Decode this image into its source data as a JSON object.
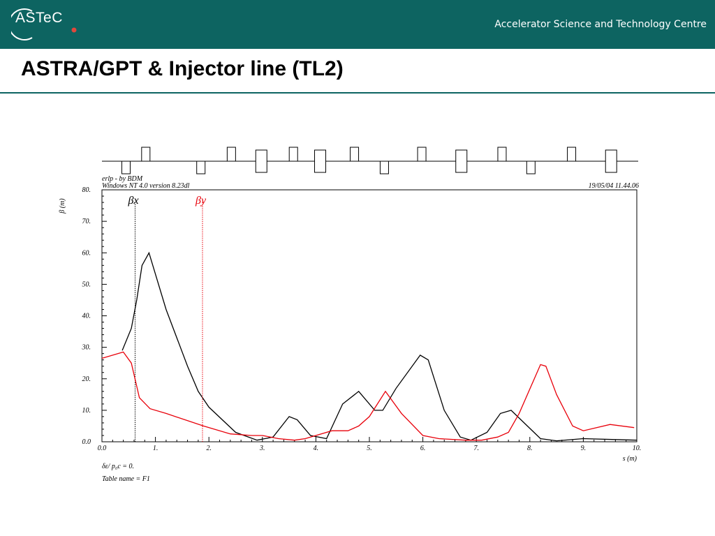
{
  "header": {
    "logo_text": "ASTeC",
    "org_name": "Accelerator Science and Technology Centre",
    "brand_color": "#0d6461",
    "logo_dot_color": "#e0483c"
  },
  "slide": {
    "title": "ASTRA/GPT & Injector line (TL2)"
  },
  "chart_data": {
    "type": "line",
    "header_left_1": "erlp - by BDM",
    "header_left_2": "Windows NT 4.0 version 8.23dl",
    "header_right": "19/05/04  11.44.06",
    "ylabel": "β (m)",
    "xlabel": "s (m)",
    "xlim": [
      0,
      10
    ],
    "ylim": [
      0,
      80
    ],
    "x_ticks": [
      "0.0",
      "1.",
      "2.",
      "3.",
      "4.",
      "5.",
      "6.",
      "7.",
      "8.",
      "9.",
      "10."
    ],
    "y_ticks": [
      "0.0",
      "10.",
      "20.",
      "30.",
      "40.",
      "50.",
      "60.",
      "70.",
      "80."
    ],
    "grid": false,
    "footer_1": "δε/ p₀c  =  0.",
    "footer_2": "Table name = F1",
    "series": [
      {
        "name": "βx",
        "color": "#000000",
        "marker_x": 0.62,
        "x": [
          0.38,
          0.55,
          0.65,
          0.75,
          0.88,
          1.2,
          1.6,
          1.8,
          2.0,
          2.5,
          2.9,
          3.2,
          3.5,
          3.65,
          3.9,
          4.2,
          4.5,
          4.8,
          5.1,
          5.25,
          5.5,
          5.95,
          6.1,
          6.4,
          6.7,
          6.9,
          7.2,
          7.45,
          7.65,
          8.2,
          8.5,
          9.0,
          10.0
        ],
        "y": [
          29,
          36,
          45,
          56,
          60,
          42,
          24,
          16,
          11,
          3,
          0.5,
          1.5,
          8,
          7,
          2,
          1,
          12,
          16,
          10,
          10,
          17,
          27.5,
          26,
          10,
          1.5,
          0.5,
          3,
          9,
          10,
          1,
          0.3,
          1,
          0.5
        ]
      },
      {
        "name": "βy",
        "color": "#e8000a",
        "marker_x": 1.88,
        "x": [
          0.0,
          0.4,
          0.55,
          0.7,
          0.9,
          1.2,
          1.9,
          2.4,
          2.8,
          3.0,
          3.3,
          3.6,
          3.8,
          4.0,
          4.3,
          4.6,
          4.8,
          5.0,
          5.3,
          5.6,
          6.0,
          6.3,
          6.8,
          7.1,
          7.4,
          7.6,
          7.8,
          8.2,
          8.3,
          8.5,
          8.8,
          9.0,
          9.5,
          9.95
        ],
        "y": [
          26.5,
          28.5,
          25,
          14,
          10.5,
          9,
          5,
          2.5,
          2,
          2,
          1,
          0.5,
          1,
          2,
          3.5,
          3.5,
          5,
          8,
          16,
          9,
          2,
          1,
          0.5,
          0.5,
          1.5,
          3,
          9,
          24.5,
          24,
          15,
          5,
          3.5,
          5.5,
          4.5
        ]
      }
    ],
    "lattice": [
      {
        "s": 0.45,
        "kind": "down",
        "wide": false
      },
      {
        "s": 0.82,
        "kind": "up",
        "wide": false
      },
      {
        "s": 1.85,
        "kind": "down",
        "wide": false
      },
      {
        "s": 2.42,
        "kind": "up",
        "wide": false
      },
      {
        "s": 2.98,
        "kind": "both",
        "wide": true
      },
      {
        "s": 3.58,
        "kind": "up",
        "wide": false
      },
      {
        "s": 4.08,
        "kind": "both",
        "wide": true
      },
      {
        "s": 4.72,
        "kind": "up",
        "wide": false
      },
      {
        "s": 5.28,
        "kind": "down",
        "wide": false
      },
      {
        "s": 5.98,
        "kind": "up",
        "wide": false
      },
      {
        "s": 6.72,
        "kind": "both",
        "wide": true
      },
      {
        "s": 7.48,
        "kind": "up",
        "wide": false
      },
      {
        "s": 8.02,
        "kind": "down",
        "wide": false
      },
      {
        "s": 8.78,
        "kind": "up",
        "wide": false
      },
      {
        "s": 9.52,
        "kind": "both",
        "wide": true
      }
    ]
  }
}
